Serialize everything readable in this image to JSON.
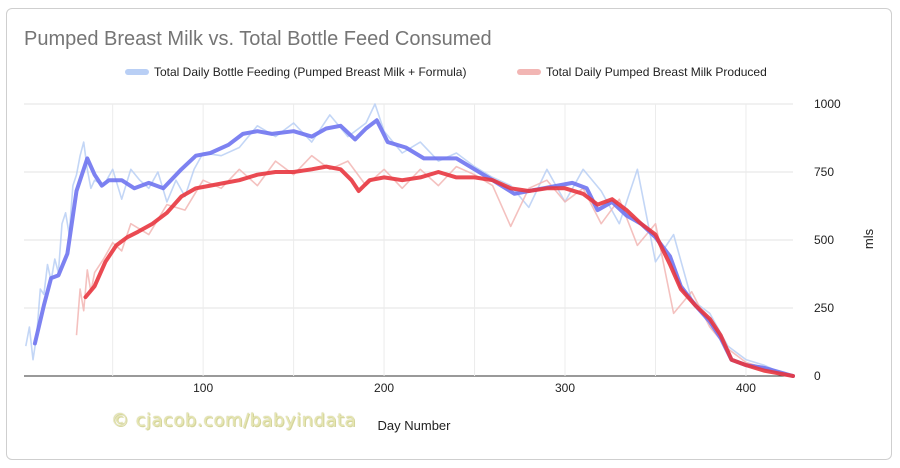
{
  "chart_data": {
    "type": "line",
    "title": "Pumped Breast Milk vs. Total Bottle Feed Consumed",
    "xlabel": "Day Number",
    "ylabel": "mls",
    "xlim": [
      1,
      426
    ],
    "ylim": [
      0,
      1000
    ],
    "x_ticks": [
      100,
      200,
      300,
      400
    ],
    "y_ticks": [
      0,
      250,
      500,
      750,
      1000
    ],
    "y_axis_side": "right",
    "grid": "horizontal and vertical",
    "legend_position": "top",
    "series": [
      {
        "name": "Total Daily Bottle Feeding (Pumped Breast Milk + Formula)",
        "color": "#6f74f0",
        "raw_color": "#b9cff5",
        "smoothed": {
          "x": [
            7,
            12,
            16,
            20,
            25,
            30,
            36,
            40,
            44,
            48,
            55,
            62,
            70,
            78,
            88,
            96,
            104,
            114,
            122,
            130,
            138,
            150,
            160,
            168,
            176,
            184,
            190,
            196,
            202,
            212,
            222,
            230,
            240,
            250,
            260,
            272,
            280,
            288,
            296,
            304,
            312,
            318,
            326,
            334,
            342,
            350,
            358,
            364,
            372,
            380,
            386,
            392,
            400,
            410,
            418,
            426
          ],
          "y": [
            120,
            260,
            360,
            370,
            450,
            680,
            800,
            740,
            700,
            720,
            720,
            690,
            710,
            690,
            760,
            810,
            820,
            850,
            890,
            900,
            890,
            900,
            880,
            910,
            920,
            870,
            910,
            940,
            860,
            840,
            800,
            800,
            800,
            760,
            720,
            670,
            680,
            690,
            700,
            710,
            690,
            610,
            640,
            590,
            560,
            510,
            440,
            330,
            260,
            200,
            140,
            60,
            40,
            30,
            15,
            0
          ]
        },
        "raw": {
          "x": [
            2,
            4,
            6,
            8,
            10,
            12,
            14,
            16,
            18,
            20,
            22,
            24,
            26,
            28,
            30,
            32,
            34,
            36,
            38,
            40,
            45,
            50,
            55,
            60,
            65,
            70,
            75,
            80,
            85,
            90,
            95,
            100,
            110,
            120,
            130,
            140,
            150,
            160,
            170,
            180,
            190,
            195,
            200,
            210,
            220,
            230,
            240,
            250,
            260,
            270,
            280,
            290,
            300,
            310,
            320,
            330,
            340,
            350,
            360,
            370,
            380,
            390,
            400,
            410,
            420,
            426
          ],
          "y": [
            110,
            180,
            60,
            150,
            320,
            300,
            410,
            350,
            430,
            380,
            560,
            600,
            520,
            700,
            740,
            810,
            860,
            760,
            690,
            720,
            700,
            760,
            650,
            760,
            720,
            690,
            750,
            640,
            720,
            660,
            760,
            820,
            810,
            840,
            920,
            880,
            930,
            860,
            960,
            880,
            930,
            1000,
            900,
            820,
            860,
            790,
            820,
            770,
            730,
            700,
            620,
            760,
            640,
            760,
            680,
            560,
            760,
            420,
            520,
            280,
            230,
            110,
            60,
            40,
            10,
            0
          ]
        }
      },
      {
        "name": "Total Daily Pumped Breast Milk Produced",
        "color": "#e8363f",
        "raw_color": "#f2b6b4",
        "smoothed": {
          "x": [
            35,
            40,
            46,
            52,
            58,
            64,
            72,
            80,
            88,
            96,
            104,
            112,
            120,
            130,
            140,
            150,
            160,
            168,
            176,
            182,
            186,
            192,
            200,
            210,
            220,
            230,
            240,
            250,
            260,
            270,
            280,
            290,
            300,
            310,
            318,
            326,
            334,
            342,
            350,
            358,
            364,
            372,
            380,
            386,
            392,
            400,
            410,
            418,
            426
          ],
          "y": [
            290,
            330,
            420,
            480,
            510,
            530,
            560,
            600,
            660,
            690,
            700,
            710,
            720,
            740,
            750,
            750,
            760,
            770,
            760,
            720,
            680,
            720,
            730,
            720,
            730,
            750,
            730,
            730,
            720,
            690,
            680,
            690,
            690,
            670,
            630,
            650,
            610,
            560,
            520,
            410,
            320,
            260,
            210,
            150,
            60,
            40,
            20,
            10,
            0
          ]
        },
        "raw": {
          "x": [
            30,
            32,
            34,
            36,
            38,
            40,
            45,
            50,
            55,
            60,
            70,
            80,
            90,
            100,
            110,
            120,
            130,
            140,
            150,
            160,
            170,
            180,
            190,
            200,
            210,
            220,
            230,
            240,
            250,
            260,
            270,
            280,
            290,
            300,
            310,
            320,
            330,
            340,
            350,
            360,
            370,
            380,
            390,
            400,
            410,
            420,
            426
          ],
          "y": [
            150,
            320,
            240,
            390,
            310,
            380,
            430,
            490,
            460,
            560,
            520,
            630,
            610,
            720,
            690,
            760,
            700,
            790,
            740,
            810,
            760,
            790,
            700,
            760,
            690,
            760,
            700,
            770,
            740,
            700,
            550,
            690,
            720,
            640,
            690,
            560,
            650,
            480,
            560,
            230,
            310,
            180,
            100,
            50,
            30,
            10,
            0
          ]
        }
      }
    ],
    "watermark": "© cjacob.com/babyindata"
  }
}
